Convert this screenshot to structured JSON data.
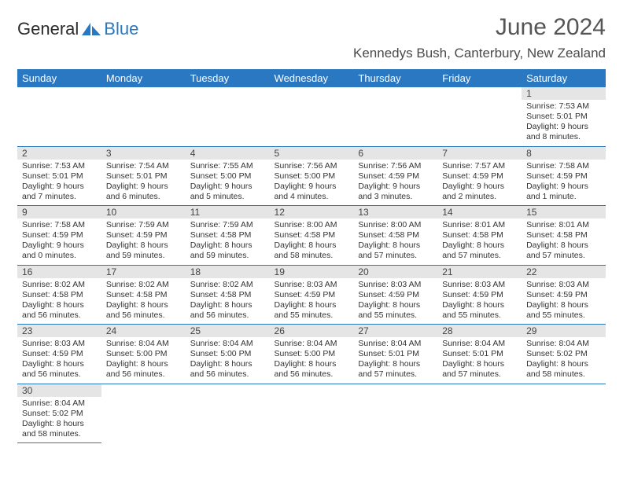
{
  "logo": {
    "text1": "General",
    "text2": "Blue"
  },
  "title": "June 2024",
  "location": "Kennedys Bush, Canterbury, New Zealand",
  "colors": {
    "header_bg": "#2b78c2",
    "header_text": "#ffffff",
    "daynum_bg": "#e5e5e5",
    "page_bg": "#ffffff",
    "text": "#333333"
  },
  "weekdays": [
    "Sunday",
    "Monday",
    "Tuesday",
    "Wednesday",
    "Thursday",
    "Friday",
    "Saturday"
  ],
  "days": {
    "1": {
      "sunrise": "7:53 AM",
      "sunset": "5:01 PM",
      "daylight": "9 hours and 8 minutes."
    },
    "2": {
      "sunrise": "7:53 AM",
      "sunset": "5:01 PM",
      "daylight": "9 hours and 7 minutes."
    },
    "3": {
      "sunrise": "7:54 AM",
      "sunset": "5:01 PM",
      "daylight": "9 hours and 6 minutes."
    },
    "4": {
      "sunrise": "7:55 AM",
      "sunset": "5:00 PM",
      "daylight": "9 hours and 5 minutes."
    },
    "5": {
      "sunrise": "7:56 AM",
      "sunset": "5:00 PM",
      "daylight": "9 hours and 4 minutes."
    },
    "6": {
      "sunrise": "7:56 AM",
      "sunset": "4:59 PM",
      "daylight": "9 hours and 3 minutes."
    },
    "7": {
      "sunrise": "7:57 AM",
      "sunset": "4:59 PM",
      "daylight": "9 hours and 2 minutes."
    },
    "8": {
      "sunrise": "7:58 AM",
      "sunset": "4:59 PM",
      "daylight": "9 hours and 1 minute."
    },
    "9": {
      "sunrise": "7:58 AM",
      "sunset": "4:59 PM",
      "daylight": "9 hours and 0 minutes."
    },
    "10": {
      "sunrise": "7:59 AM",
      "sunset": "4:59 PM",
      "daylight": "8 hours and 59 minutes."
    },
    "11": {
      "sunrise": "7:59 AM",
      "sunset": "4:58 PM",
      "daylight": "8 hours and 59 minutes."
    },
    "12": {
      "sunrise": "8:00 AM",
      "sunset": "4:58 PM",
      "daylight": "8 hours and 58 minutes."
    },
    "13": {
      "sunrise": "8:00 AM",
      "sunset": "4:58 PM",
      "daylight": "8 hours and 57 minutes."
    },
    "14": {
      "sunrise": "8:01 AM",
      "sunset": "4:58 PM",
      "daylight": "8 hours and 57 minutes."
    },
    "15": {
      "sunrise": "8:01 AM",
      "sunset": "4:58 PM",
      "daylight": "8 hours and 57 minutes."
    },
    "16": {
      "sunrise": "8:02 AM",
      "sunset": "4:58 PM",
      "daylight": "8 hours and 56 minutes."
    },
    "17": {
      "sunrise": "8:02 AM",
      "sunset": "4:58 PM",
      "daylight": "8 hours and 56 minutes."
    },
    "18": {
      "sunrise": "8:02 AM",
      "sunset": "4:58 PM",
      "daylight": "8 hours and 56 minutes."
    },
    "19": {
      "sunrise": "8:03 AM",
      "sunset": "4:59 PM",
      "daylight": "8 hours and 55 minutes."
    },
    "20": {
      "sunrise": "8:03 AM",
      "sunset": "4:59 PM",
      "daylight": "8 hours and 55 minutes."
    },
    "21": {
      "sunrise": "8:03 AM",
      "sunset": "4:59 PM",
      "daylight": "8 hours and 55 minutes."
    },
    "22": {
      "sunrise": "8:03 AM",
      "sunset": "4:59 PM",
      "daylight": "8 hours and 55 minutes."
    },
    "23": {
      "sunrise": "8:03 AM",
      "sunset": "4:59 PM",
      "daylight": "8 hours and 56 minutes."
    },
    "24": {
      "sunrise": "8:04 AM",
      "sunset": "5:00 PM",
      "daylight": "8 hours and 56 minutes."
    },
    "25": {
      "sunrise": "8:04 AM",
      "sunset": "5:00 PM",
      "daylight": "8 hours and 56 minutes."
    },
    "26": {
      "sunrise": "8:04 AM",
      "sunset": "5:00 PM",
      "daylight": "8 hours and 56 minutes."
    },
    "27": {
      "sunrise": "8:04 AM",
      "sunset": "5:01 PM",
      "daylight": "8 hours and 57 minutes."
    },
    "28": {
      "sunrise": "8:04 AM",
      "sunset": "5:01 PM",
      "daylight": "8 hours and 57 minutes."
    },
    "29": {
      "sunrise": "8:04 AM",
      "sunset": "5:02 PM",
      "daylight": "8 hours and 58 minutes."
    },
    "30": {
      "sunrise": "8:04 AM",
      "sunset": "5:02 PM",
      "daylight": "8 hours and 58 minutes."
    }
  },
  "labels": {
    "sunrise": "Sunrise: ",
    "sunset": "Sunset: ",
    "daylight": "Daylight: "
  },
  "grid": [
    [
      null,
      null,
      null,
      null,
      null,
      null,
      "1"
    ],
    [
      "2",
      "3",
      "4",
      "5",
      "6",
      "7",
      "8"
    ],
    [
      "9",
      "10",
      "11",
      "12",
      "13",
      "14",
      "15"
    ],
    [
      "16",
      "17",
      "18",
      "19",
      "20",
      "21",
      "22"
    ],
    [
      "23",
      "24",
      "25",
      "26",
      "27",
      "28",
      "29"
    ],
    [
      "30",
      null,
      null,
      null,
      null,
      null,
      null
    ]
  ]
}
